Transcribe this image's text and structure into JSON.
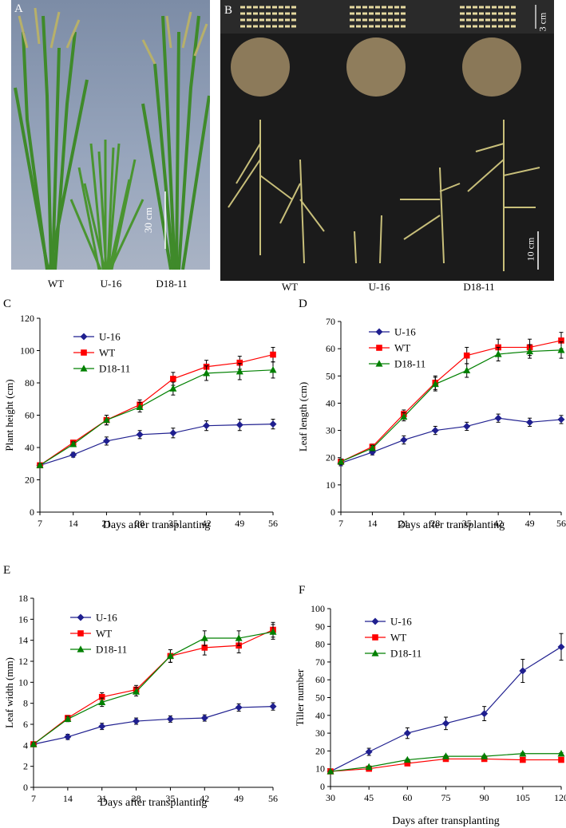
{
  "figure": {
    "panel_a": {
      "letter": "A",
      "scale_label": "30 cm",
      "labels": [
        "WT",
        "U-16",
        "D18-11"
      ]
    },
    "panel_b": {
      "letter": "B",
      "seed_scale_label": "3 cm",
      "panicle_scale_label": "10 cm",
      "labels": [
        "WT",
        "U-16",
        "D18-11"
      ]
    }
  },
  "colors": {
    "U-16": "#1f1f8f",
    "WT": "#ff0000",
    "D18-11": "#008000"
  },
  "chart_data": [
    {
      "panel": "C",
      "type": "line",
      "xlabel": "Days after transplanting",
      "ylabel": "Plant height (cm)",
      "x": [
        7,
        14,
        21,
        28,
        35,
        42,
        49,
        56
      ],
      "ylim": [
        0,
        120
      ],
      "ytick_step": 20,
      "series": [
        {
          "name": "U-16",
          "marker": "diamond",
          "values": [
            29,
            35.5,
            44,
            48,
            49,
            53.5,
            54,
            54.5
          ],
          "errors": [
            1,
            1.5,
            2.5,
            2.5,
            3,
            3,
            3.5,
            3
          ]
        },
        {
          "name": "WT",
          "marker": "square",
          "values": [
            29,
            43,
            57,
            66.5,
            82.5,
            90,
            92.5,
            97.5
          ],
          "errors": [
            1,
            1.5,
            3,
            3,
            4,
            4,
            4,
            4.5
          ]
        },
        {
          "name": "D18-11",
          "marker": "triangle",
          "values": [
            29,
            42,
            57,
            65,
            76.5,
            86,
            87,
            88
          ],
          "errors": [
            1,
            1.5,
            3,
            3,
            4,
            4.5,
            5,
            5
          ]
        }
      ]
    },
    {
      "panel": "D",
      "type": "line",
      "xlabel": "Days after transplanting",
      "ylabel": "Leaf length (cm)",
      "x": [
        7,
        14,
        21,
        28,
        35,
        42,
        49,
        56
      ],
      "ylim": [
        0,
        70
      ],
      "ytick_step": 10,
      "series": [
        {
          "name": "U-16",
          "marker": "diamond",
          "values": [
            18,
            22,
            26.5,
            30,
            31.5,
            34.5,
            33,
            34
          ],
          "errors": [
            1,
            1,
            1.5,
            1.5,
            1.5,
            1.5,
            1.5,
            1.5
          ]
        },
        {
          "name": "WT",
          "marker": "square",
          "values": [
            18.5,
            24,
            36,
            47.5,
            57.5,
            60.5,
            60.5,
            63
          ],
          "errors": [
            1,
            1,
            1.5,
            2.5,
            3,
            3,
            3,
            3
          ]
        },
        {
          "name": "D18-11",
          "marker": "triangle",
          "values": [
            18.5,
            23.5,
            35,
            47,
            52,
            58,
            59,
            59.5
          ],
          "errors": [
            1,
            1,
            1.5,
            2.5,
            2.5,
            2.5,
            2.5,
            3
          ]
        }
      ]
    },
    {
      "panel": "E",
      "type": "line",
      "xlabel": "Days after transplanting",
      "ylabel": "Leaf width (mm)",
      "x": [
        7,
        14,
        21,
        28,
        35,
        42,
        49,
        56
      ],
      "ylim": [
        0,
        18
      ],
      "ytick_step": 2,
      "series": [
        {
          "name": "U-16",
          "marker": "diamond",
          "values": [
            4.1,
            4.8,
            5.8,
            6.3,
            6.5,
            6.6,
            7.6,
            7.7
          ],
          "errors": [
            0.15,
            0.25,
            0.3,
            0.3,
            0.3,
            0.3,
            0.35,
            0.35
          ]
        },
        {
          "name": "WT",
          "marker": "square",
          "values": [
            4.1,
            6.6,
            8.6,
            9.3,
            12.5,
            13.3,
            13.5,
            15
          ],
          "errors": [
            0.15,
            0.25,
            0.4,
            0.4,
            0.6,
            0.7,
            0.7,
            0.7
          ]
        },
        {
          "name": "D18-11",
          "marker": "triangle",
          "values": [
            4.1,
            6.5,
            8.1,
            9.1,
            12.5,
            14.2,
            14.2,
            14.8
          ],
          "errors": [
            0.15,
            0.25,
            0.4,
            0.4,
            0.6,
            0.7,
            0.7,
            0.7
          ]
        }
      ]
    },
    {
      "panel": "F",
      "type": "line",
      "xlabel": "Days after transplanting",
      "ylabel": "Tiller number",
      "x": [
        30,
        45,
        60,
        75,
        90,
        105,
        120
      ],
      "ylim": [
        0,
        100
      ],
      "ytick_step": 10,
      "series": [
        {
          "name": "U-16",
          "marker": "diamond",
          "values": [
            8.5,
            19.5,
            30,
            35.5,
            41,
            65,
            78.5
          ],
          "errors": [
            0.5,
            2,
            3,
            3.5,
            4,
            6.5,
            7.5
          ]
        },
        {
          "name": "WT",
          "marker": "square",
          "values": [
            8.5,
            10,
            13,
            15.5,
            15.5,
            15,
            15
          ],
          "errors": [
            0.3,
            0.5,
            0.5,
            0.5,
            0.5,
            0.5,
            0.5
          ]
        },
        {
          "name": "D18-11",
          "marker": "triangle",
          "values": [
            8.5,
            11,
            15,
            17,
            17,
            18.5,
            18.5
          ],
          "errors": [
            0.3,
            0.5,
            0.5,
            0.5,
            0.5,
            0.5,
            0.5
          ]
        }
      ]
    }
  ]
}
